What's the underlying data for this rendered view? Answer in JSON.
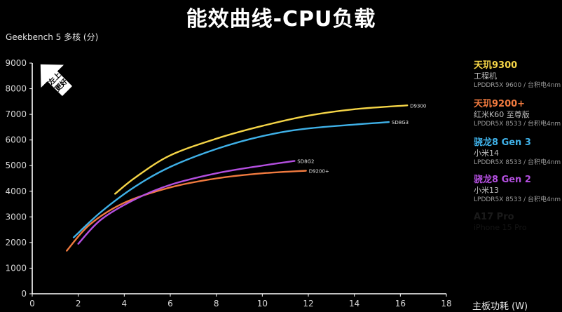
{
  "chart_data": {
    "type": "line",
    "title": "能效曲线-CPU负载",
    "ylabel": "Geekbench 5 多核 (分)",
    "xlabel": "主板功耗 (W)",
    "xlim": [
      0,
      18
    ],
    "ylim": [
      0,
      9000
    ],
    "x_ticks": [
      "0",
      "2",
      "4",
      "6",
      "8",
      "10",
      "12",
      "14",
      "16",
      "18"
    ],
    "y_ticks": [
      "0",
      "1000",
      "2000",
      "3000",
      "4000",
      "5000",
      "6000",
      "7000",
      "8000",
      "9000"
    ],
    "grid": false,
    "legend_position": "right",
    "badge": "左上更好",
    "series": [
      {
        "name": "天玑9300",
        "device": "工程机",
        "memory": "LPDDR5X 9600 / 台积电4nm",
        "end_label": "D9300",
        "color": "#f5d547",
        "points": [
          [
            3.6,
            3900
          ],
          [
            4.5,
            4550
          ],
          [
            6,
            5400
          ],
          [
            8,
            6050
          ],
          [
            10,
            6550
          ],
          [
            12,
            6950
          ],
          [
            14,
            7200
          ],
          [
            16.3,
            7350
          ]
        ]
      },
      {
        "name": "天玑9200+",
        "device": "红米K60 至尊版",
        "memory": "LPDDR5X 8533 / 台积电4nm",
        "end_label": "D9200+",
        "color": "#f07a3f",
        "points": [
          [
            1.5,
            1680
          ],
          [
            2.5,
            2700
          ],
          [
            4,
            3550
          ],
          [
            6,
            4150
          ],
          [
            8,
            4500
          ],
          [
            10,
            4700
          ],
          [
            11.9,
            4800
          ]
        ]
      },
      {
        "name": "骁龙8 Gen 3",
        "device": "小米14",
        "memory": "LPDDR5X 8533 / 台积电4nm",
        "end_label": "SD8G3",
        "color": "#3fb1e8",
        "points": [
          [
            1.8,
            2200
          ],
          [
            3,
            3200
          ],
          [
            4.5,
            4200
          ],
          [
            6,
            4950
          ],
          [
            8,
            5650
          ],
          [
            10,
            6150
          ],
          [
            12,
            6450
          ],
          [
            15.5,
            6700
          ]
        ]
      },
      {
        "name": "骁龙8 Gen 2",
        "device": "小米13",
        "memory": "LPDDR5X 8533 / 台积电4nm",
        "end_label": "SD8G2",
        "color": "#b44fe0",
        "points": [
          [
            2,
            1950
          ],
          [
            3,
            2900
          ],
          [
            4.5,
            3700
          ],
          [
            6,
            4250
          ],
          [
            8,
            4700
          ],
          [
            10,
            5000
          ],
          [
            11.4,
            5180
          ]
        ]
      }
    ],
    "faded_legend": {
      "name": "A17 Pro",
      "device": "iPhone 15 Pro"
    }
  }
}
